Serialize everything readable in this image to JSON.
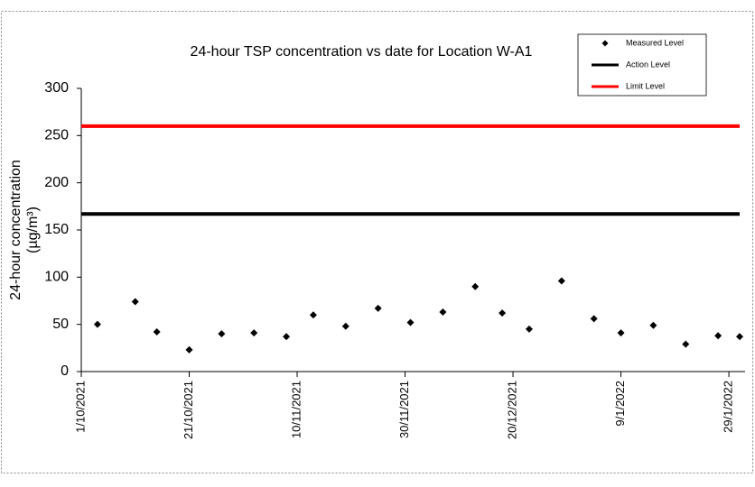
{
  "chart_data": {
    "type": "scatter",
    "title": "24-hour TSP concentration vs date for Location W-A1",
    "ylabel": [
      "24-hour concentration",
      "(µg/m³)"
    ],
    "xlim": [
      "2021-10-01",
      "2022-02-01"
    ],
    "xticks": [
      {
        "value": "2021-10-01",
        "label": "1/10/2021"
      },
      {
        "value": "2021-10-21",
        "label": "21/10/2021"
      },
      {
        "value": "2021-11-10",
        "label": "10/11/2021"
      },
      {
        "value": "2021-11-30",
        "label": "30/11/2021"
      },
      {
        "value": "2021-12-20",
        "label": "20/12/2021"
      },
      {
        "value": "2022-01-09",
        "label": "9/1/2022"
      },
      {
        "value": "2022-01-29",
        "label": "29/1/2022"
      }
    ],
    "ylim": [
      0,
      300
    ],
    "yticks": [
      0,
      50,
      100,
      150,
      200,
      250,
      300
    ],
    "legend": "top-right",
    "series": [
      {
        "name": "Measured Level",
        "color": "#000000",
        "marker": "diamond",
        "x": [
          "2021-10-04",
          "2021-10-11",
          "2021-10-15",
          "2021-10-21",
          "2021-10-27",
          "2021-11-02",
          "2021-11-08",
          "2021-11-13",
          "2021-11-19",
          "2021-11-25",
          "2021-12-01",
          "2021-12-07",
          "2021-12-13",
          "2021-12-18",
          "2021-12-23",
          "2021-12-29",
          "2022-01-04",
          "2022-01-09",
          "2022-01-15",
          "2022-01-21",
          "2022-01-27",
          "2022-01-31"
        ],
        "values": [
          50,
          74,
          42,
          23,
          40,
          41,
          37,
          60,
          48,
          67,
          52,
          63,
          90,
          62,
          45,
          96,
          56,
          41,
          49,
          29,
          38,
          37
        ]
      },
      {
        "name": "Action Level",
        "color": "#000000",
        "marker": "line",
        "x": [
          "2021-10-01",
          "2022-01-31"
        ],
        "values": [
          167,
          167
        ]
      },
      {
        "name": "Limit Level",
        "color": "#ff0000",
        "marker": "line",
        "x": [
          "2021-10-01",
          "2022-01-31"
        ],
        "values": [
          260,
          260
        ]
      }
    ]
  }
}
